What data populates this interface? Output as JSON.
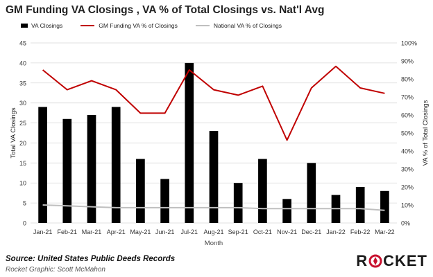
{
  "title": "GM Funding VA Closings , VA % of Total Closings vs. Nat'l Avg",
  "source": "Source: United States Public Deeds Records",
  "credit": "Rocket Graphic: Scott McMahon",
  "logo": {
    "text": "ROCKET",
    "accent_color": "#c8102e"
  },
  "colors": {
    "bars": "#000000",
    "gm_line": "#c00000",
    "nat_line": "#bfbfbf",
    "grid": "#d9d9d9"
  },
  "chart_data": {
    "type": "bar",
    "title": "GM Funding VA Closings , VA % of Total Closings vs. Nat'l Avg",
    "categories": [
      "Jan-21",
      "Feb-21",
      "Mar-21",
      "Apr-21",
      "May-21",
      "Jun-21",
      "Jul-21",
      "Aug-21",
      "Sep-21",
      "Oct-21",
      "Nov-21",
      "Dec-21",
      "Jan-22",
      "Feb-22",
      "Mar-22"
    ],
    "series": [
      {
        "name": "VA Closings",
        "type": "bar",
        "axis": "left",
        "values": [
          29,
          26,
          27,
          29,
          16,
          11,
          40,
          23,
          10,
          16,
          6,
          15,
          7,
          9,
          8
        ]
      },
      {
        "name": "GM Funding VA % of Closings",
        "type": "line",
        "axis": "right",
        "values": [
          85,
          74,
          79,
          74,
          61,
          61,
          85,
          74,
          71,
          76,
          46,
          75,
          87,
          75,
          72
        ]
      },
      {
        "name": "National VA % of Closings",
        "type": "line",
        "axis": "right",
        "values": [
          10,
          9.5,
          9,
          8.5,
          8.5,
          8.5,
          8.5,
          8.5,
          8.5,
          8,
          8,
          8,
          8,
          8,
          7
        ]
      }
    ],
    "xlabel": "Month",
    "ylabel": "Total VA Closings",
    "y2label": "VA % of Total Closings",
    "ylim": [
      0,
      45
    ],
    "yticks": [
      "0",
      "5",
      "10",
      "15",
      "20",
      "25",
      "30",
      "35",
      "40",
      "45"
    ],
    "y2lim": [
      0,
      100
    ],
    "y2ticks": [
      "0%",
      "10%",
      "20%",
      "30%",
      "40%",
      "50%",
      "60%",
      "70%",
      "80%",
      "90%",
      "100%"
    ],
    "grid": "horizontal",
    "legend_position": "top"
  }
}
